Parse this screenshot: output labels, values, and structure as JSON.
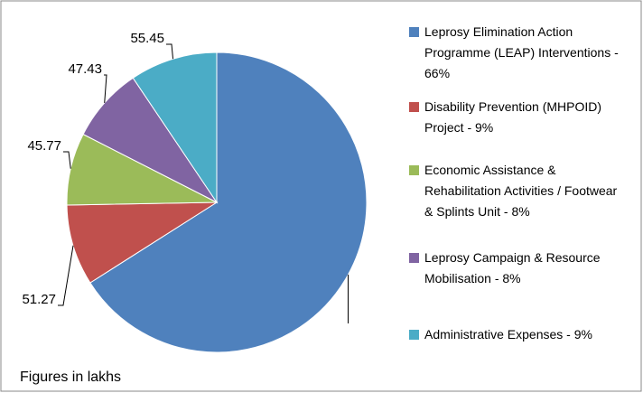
{
  "chart_data": {
    "type": "pie",
    "categories": [
      "Leprosy Elimination Action Programme (LEAP) Interventions - 66%",
      "Disability Prevention (MHPOID) Project - 9%",
      "Economic Assistance & Rehabilitation Activities / Footwear & Splints Unit - 8%",
      "Leprosy Campaign & Resource Mobilisation - 8%",
      "Administrative Expenses - 9%"
    ],
    "values": [
      388,
      51.27,
      45.77,
      47.43,
      55.45
    ],
    "colors": [
      "#4f81bd",
      "#c0504d",
      "#9bbb59",
      "#8064a2",
      "#4bacc6"
    ],
    "annotation": "Figures in lakhs"
  }
}
